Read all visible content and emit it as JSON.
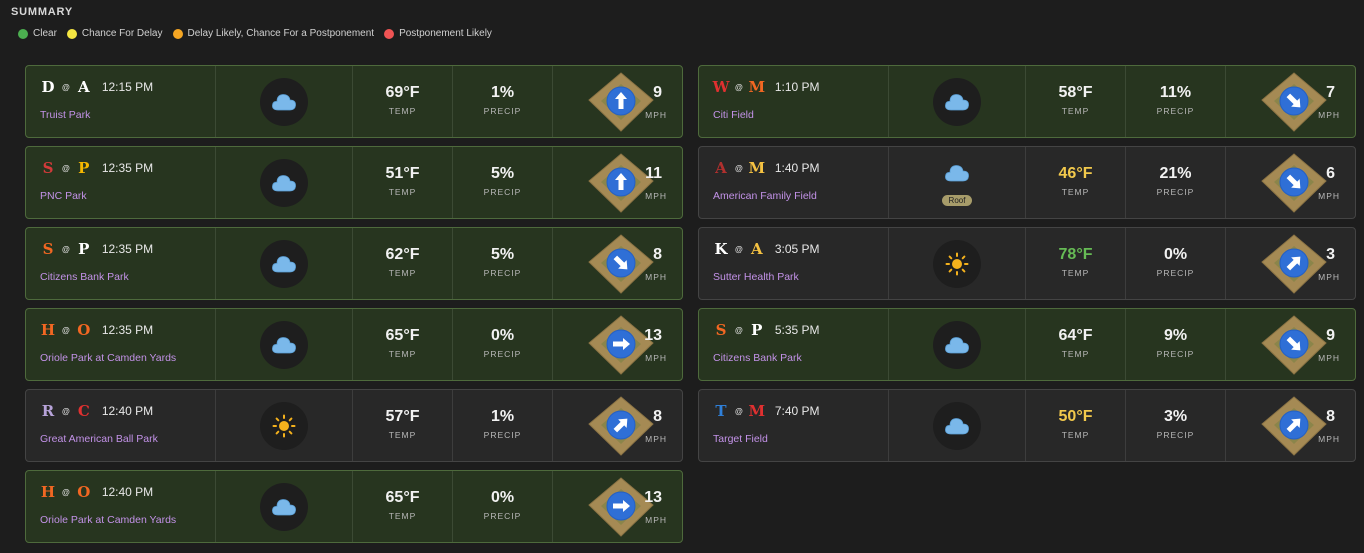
{
  "title": "SUMMARY",
  "legend": [
    {
      "label": "Clear",
      "color": "#4caf50"
    },
    {
      "label": "Chance For Delay",
      "color": "#f5e642"
    },
    {
      "label": "Delay Likely, Chance For a Postponement",
      "color": "#f5a623"
    },
    {
      "label": "Postponement Likely",
      "color": "#f05454"
    }
  ],
  "labels": {
    "temp": "TEMP",
    "precip": "PRECIP",
    "mph": "MPH",
    "roof": "Roof",
    "at": "@"
  },
  "games": [
    {
      "away": {
        "glyph": "D",
        "icon": "tigers-logo-icon",
        "color": "#ffffff"
      },
      "home": {
        "glyph": "A",
        "icon": "braves-logo-icon",
        "color": "#ffffff"
      },
      "time": "12:15 PM",
      "park": "Truist Park",
      "sky": "cloud",
      "temp": "69°F",
      "temp_color": "#f2f2f2",
      "precip": "1%",
      "wind_dir": "up",
      "mph": "9",
      "status": "clear",
      "roof": false
    },
    {
      "away": {
        "glyph": "S",
        "icon": "cardinals-logo-icon",
        "color": "#d33a3a"
      },
      "home": {
        "glyph": "P",
        "icon": "pirates-logo-icon",
        "color": "#f5b800"
      },
      "time": "12:35 PM",
      "park": "PNC Park",
      "sky": "cloud",
      "temp": "51°F",
      "temp_color": "#f2f2f2",
      "precip": "5%",
      "wind_dir": "up",
      "mph": "11",
      "status": "clear",
      "roof": false
    },
    {
      "away": {
        "glyph": "S",
        "icon": "giants-logo-icon",
        "color": "#f26722"
      },
      "home": {
        "glyph": "P",
        "icon": "phillies-logo-icon",
        "color": "#ffffff"
      },
      "time": "12:35 PM",
      "park": "Citizens Bank Park",
      "sky": "cloud",
      "temp": "62°F",
      "temp_color": "#f2f2f2",
      "precip": "5%",
      "wind_dir": "down-right",
      "mph": "8",
      "status": "clear",
      "roof": false
    },
    {
      "away": {
        "glyph": "H",
        "icon": "astros-logo-icon",
        "color": "#f26722"
      },
      "home": {
        "glyph": "O",
        "icon": "orioles-logo-icon",
        "color": "#f26722"
      },
      "time": "12:35 PM",
      "park": "Oriole Park at Camden Yards",
      "sky": "cloud",
      "temp": "65°F",
      "temp_color": "#f2f2f2",
      "precip": "0%",
      "wind_dir": "right",
      "mph": "13",
      "status": "clear",
      "roof": false
    },
    {
      "away": {
        "glyph": "R",
        "icon": "rockies-logo-icon",
        "color": "#b7a3d9"
      },
      "home": {
        "glyph": "C",
        "icon": "reds-logo-icon",
        "color": "#e03030"
      },
      "time": "12:40 PM",
      "park": "Great American Ball Park",
      "sky": "sun",
      "temp": "57°F",
      "temp_color": "#f2f2f2",
      "precip": "1%",
      "wind_dir": "up-right",
      "mph": "8",
      "status": "none",
      "roof": false
    },
    {
      "away": {
        "glyph": "H",
        "icon": "astros-logo-icon",
        "color": "#f26722"
      },
      "home": {
        "glyph": "O",
        "icon": "orioles-logo-icon",
        "color": "#f26722"
      },
      "time": "12:40 PM",
      "park": "Oriole Park at Camden Yards",
      "sky": "cloud",
      "temp": "65°F",
      "temp_color": "#f2f2f2",
      "precip": "0%",
      "wind_dir": "right",
      "mph": "13",
      "status": "clear",
      "roof": false
    },
    {
      "away": {
        "glyph": "W",
        "icon": "nationals-logo-icon",
        "color": "#e03030"
      },
      "home": {
        "glyph": "M",
        "icon": "mets-logo-icon",
        "color": "#f26722"
      },
      "time": "1:10 PM",
      "park": "Citi Field",
      "sky": "cloud",
      "temp": "58°F",
      "temp_color": "#f2f2f2",
      "precip": "11%",
      "wind_dir": "down-right",
      "mph": "7",
      "status": "clear",
      "roof": false
    },
    {
      "away": {
        "glyph": "A",
        "icon": "diamondbacks-logo-icon",
        "color": "#b0302e"
      },
      "home": {
        "glyph": "M",
        "icon": "brewers-logo-icon",
        "color": "#f5c242"
      },
      "time": "1:40 PM",
      "park": "American Family Field",
      "sky": "cloud",
      "temp": "46°F",
      "temp_color": "#f2c94c",
      "precip": "21%",
      "wind_dir": "down-right",
      "mph": "6",
      "status": "none",
      "roof": true
    },
    {
      "away": {
        "glyph": "K",
        "icon": "royals-logo-icon",
        "color": "#ffffff"
      },
      "home": {
        "glyph": "A",
        "icon": "athletics-logo-icon",
        "color": "#f5c242"
      },
      "time": "3:05 PM",
      "park": "Sutter Health Park",
      "sky": "sun",
      "temp": "78°F",
      "temp_color": "#66bb55",
      "precip": "0%",
      "wind_dir": "up-right",
      "mph": "3",
      "status": "none",
      "roof": false
    },
    {
      "away": {
        "glyph": "S",
        "icon": "giants-logo-icon",
        "color": "#f26722"
      },
      "home": {
        "glyph": "P",
        "icon": "phillies-logo-icon",
        "color": "#ffffff"
      },
      "time": "5:35 PM",
      "park": "Citizens Bank Park",
      "sky": "cloud",
      "temp": "64°F",
      "temp_color": "#f2f2f2",
      "precip": "9%",
      "wind_dir": "down-right",
      "mph": "9",
      "status": "clear",
      "roof": false
    },
    {
      "away": {
        "glyph": "T",
        "icon": "blue-jays-logo-icon",
        "color": "#2f7fd8"
      },
      "home": {
        "glyph": "M",
        "icon": "twins-logo-icon",
        "color": "#e03030"
      },
      "time": "7:40 PM",
      "park": "Target Field",
      "sky": "cloud",
      "temp": "50°F",
      "temp_color": "#f2c94c",
      "precip": "3%",
      "wind_dir": "up-right",
      "mph": "8",
      "status": "none",
      "roof": false
    }
  ]
}
